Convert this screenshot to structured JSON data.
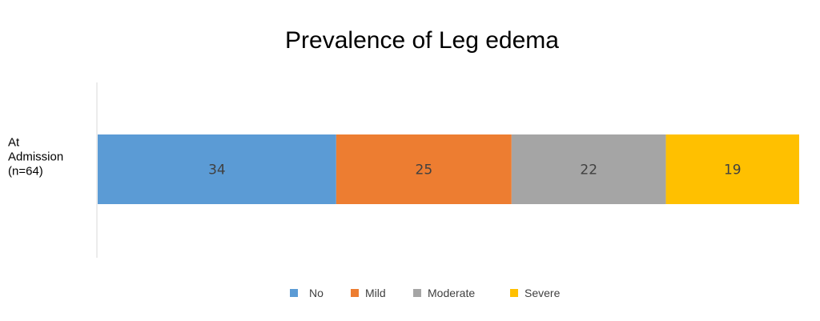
{
  "chart_data": {
    "type": "bar",
    "orientation": "horizontal",
    "stacked": true,
    "title": "Prevalence of Leg edema",
    "categories": [
      [
        "At",
        "Admission",
        "(n=64)"
      ]
    ],
    "series": [
      {
        "name": "No",
        "values": [
          34
        ],
        "color": "#5B9BD5"
      },
      {
        "name": "Mild",
        "values": [
          25
        ],
        "color": "#ED7D31"
      },
      {
        "name": "Moderate",
        "values": [
          22
        ],
        "color": "#A5A5A5"
      },
      {
        "name": "Severe",
        "values": [
          19
        ],
        "color": "#FFC000"
      }
    ],
    "xlim": [
      0,
      100
    ],
    "xlabel": "",
    "ylabel": "",
    "grid": false,
    "legend_position": "bottom"
  }
}
